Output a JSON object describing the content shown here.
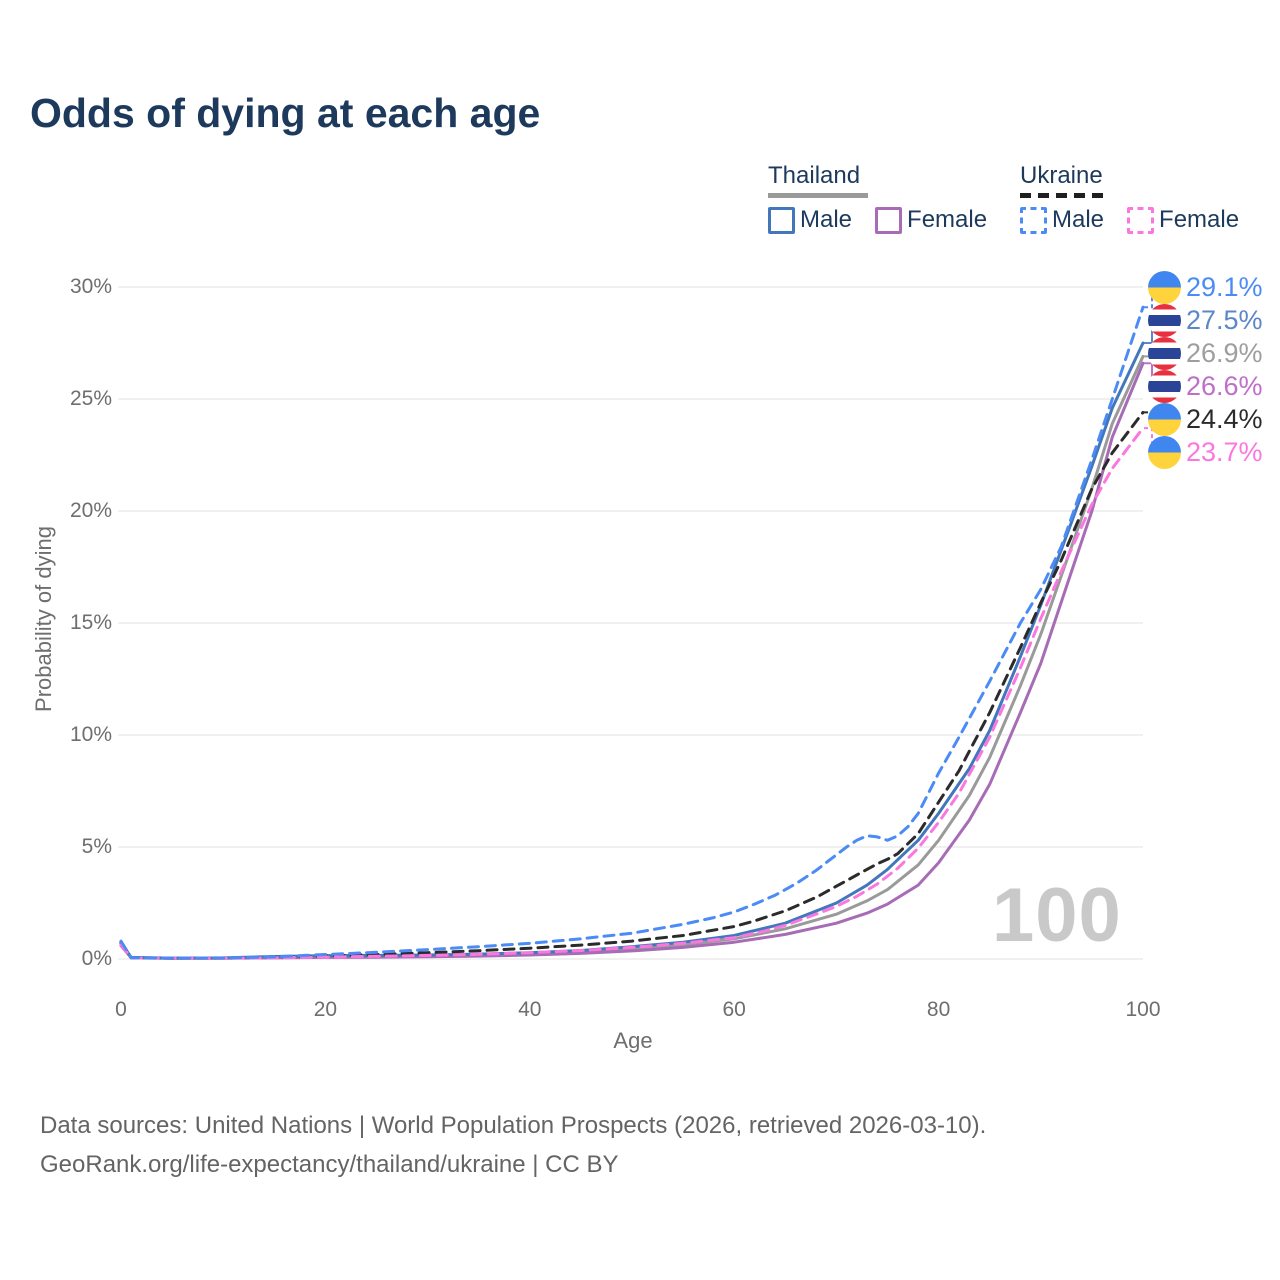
{
  "title": "Odds of dying at each age",
  "watermark": "100",
  "legend": {
    "groups": [
      {
        "country": "Thailand",
        "line_style": "solid",
        "underline_color": "#9a9a9a",
        "items": [
          {
            "label": "Male",
            "color": "#4377bc"
          },
          {
            "label": "Female",
            "color": "#a76cb5"
          }
        ]
      },
      {
        "country": "Ukraine",
        "line_style": "dashed",
        "underline_color": "#1f1f1f",
        "items": [
          {
            "label": "Male",
            "color": "#4b8bf5"
          },
          {
            "label": "Female",
            "color": "#fb77e0"
          }
        ]
      }
    ]
  },
  "footer": {
    "line1": "Data sources: United Nations | World Population Prospects (2026, retrieved 2026-03-10).",
    "line2": "GeoRank.org/life-expectancy/thailand/ukraine | CC BY"
  },
  "chart_data": {
    "type": "line",
    "title": "Odds of dying at each age",
    "xlabel": "Age",
    "ylabel": "Probability of dying",
    "xlim": [
      0,
      100
    ],
    "ylim": [
      0,
      30
    ],
    "x_ticks": [
      0,
      20,
      40,
      60,
      80,
      100
    ],
    "y_ticks": [
      "0%",
      "5%",
      "10%",
      "15%",
      "20%",
      "25%",
      "30%"
    ],
    "grid": "horizontal",
    "legend_position": "top-right",
    "series": [
      {
        "id": "thailand-total",
        "name": "Thailand (both sexes)",
        "country": "Thailand",
        "sex": "total",
        "color": "#9a9a9a",
        "dash": false,
        "end_value_pct": 26.9,
        "points": [
          [
            0,
            0.68
          ],
          [
            1,
            0.06
          ],
          [
            5,
            0.035
          ],
          [
            10,
            0.04
          ],
          [
            15,
            0.08
          ],
          [
            20,
            0.11
          ],
          [
            25,
            0.12
          ],
          [
            30,
            0.14
          ],
          [
            35,
            0.17
          ],
          [
            40,
            0.23
          ],
          [
            45,
            0.31
          ],
          [
            50,
            0.45
          ],
          [
            55,
            0.63
          ],
          [
            60,
            0.9
          ],
          [
            65,
            1.35
          ],
          [
            70,
            2.0
          ],
          [
            73,
            2.6
          ],
          [
            75,
            3.1
          ],
          [
            78,
            4.2
          ],
          [
            80,
            5.3
          ],
          [
            83,
            7.3
          ],
          [
            85,
            9.0
          ],
          [
            88,
            12.2
          ],
          [
            90,
            14.5
          ],
          [
            93,
            18.4
          ],
          [
            95,
            21.0
          ],
          [
            97,
            23.9
          ],
          [
            100,
            26.9
          ]
        ]
      },
      {
        "id": "thailand-female",
        "name": "Thailand Female",
        "country": "Thailand",
        "sex": "female",
        "color": "#a76cb5",
        "dash": false,
        "end_value_pct": 26.6,
        "points": [
          [
            0,
            0.6
          ],
          [
            1,
            0.05
          ],
          [
            5,
            0.03
          ],
          [
            10,
            0.03
          ],
          [
            15,
            0.05
          ],
          [
            20,
            0.07
          ],
          [
            25,
            0.08
          ],
          [
            30,
            0.1
          ],
          [
            35,
            0.13
          ],
          [
            40,
            0.18
          ],
          [
            45,
            0.25
          ],
          [
            50,
            0.36
          ],
          [
            55,
            0.52
          ],
          [
            60,
            0.75
          ],
          [
            65,
            1.1
          ],
          [
            70,
            1.6
          ],
          [
            73,
            2.05
          ],
          [
            75,
            2.45
          ],
          [
            78,
            3.3
          ],
          [
            80,
            4.3
          ],
          [
            83,
            6.2
          ],
          [
            85,
            7.8
          ],
          [
            88,
            11.0
          ],
          [
            90,
            13.2
          ],
          [
            93,
            17.3
          ],
          [
            95,
            20.0
          ],
          [
            97,
            23.3
          ],
          [
            100,
            26.6
          ]
        ]
      },
      {
        "id": "thailand-male",
        "name": "Thailand Male",
        "country": "Thailand",
        "sex": "male",
        "color": "#4377bc",
        "dash": false,
        "end_value_pct": 27.5,
        "points": [
          [
            0,
            0.75
          ],
          [
            1,
            0.07
          ],
          [
            5,
            0.04
          ],
          [
            10,
            0.05
          ],
          [
            15,
            0.11
          ],
          [
            20,
            0.15
          ],
          [
            25,
            0.16
          ],
          [
            30,
            0.18
          ],
          [
            35,
            0.22
          ],
          [
            40,
            0.28
          ],
          [
            45,
            0.38
          ],
          [
            50,
            0.55
          ],
          [
            55,
            0.75
          ],
          [
            60,
            1.05
          ],
          [
            65,
            1.6
          ],
          [
            70,
            2.5
          ],
          [
            73,
            3.3
          ],
          [
            75,
            4.0
          ],
          [
            78,
            5.3
          ],
          [
            80,
            6.5
          ],
          [
            83,
            8.5
          ],
          [
            85,
            10.2
          ],
          [
            88,
            13.5
          ],
          [
            90,
            15.8
          ],
          [
            93,
            19.5
          ],
          [
            95,
            22.0
          ],
          [
            97,
            24.6
          ],
          [
            100,
            27.5
          ]
        ]
      },
      {
        "id": "ukraine-total",
        "name": "Ukraine (both sexes)",
        "country": "Ukraine",
        "sex": "total",
        "color": "#2b2b2b",
        "dash": true,
        "end_value_pct": 24.4,
        "points": [
          [
            0,
            0.72
          ],
          [
            1,
            0.055
          ],
          [
            5,
            0.035
          ],
          [
            10,
            0.04
          ],
          [
            15,
            0.08
          ],
          [
            20,
            0.14
          ],
          [
            25,
            0.2
          ],
          [
            30,
            0.28
          ],
          [
            35,
            0.37
          ],
          [
            40,
            0.48
          ],
          [
            45,
            0.62
          ],
          [
            50,
            0.8
          ],
          [
            55,
            1.05
          ],
          [
            60,
            1.45
          ],
          [
            62,
            1.7
          ],
          [
            65,
            2.15
          ],
          [
            68,
            2.75
          ],
          [
            70,
            3.25
          ],
          [
            72,
            3.75
          ],
          [
            74,
            4.25
          ],
          [
            75,
            4.45
          ],
          [
            76,
            4.7
          ],
          [
            78,
            5.6
          ],
          [
            80,
            7.0
          ],
          [
            82,
            8.4
          ],
          [
            85,
            11.0
          ],
          [
            88,
            13.9
          ],
          [
            90,
            15.9
          ],
          [
            92,
            17.8
          ],
          [
            95,
            21.0
          ],
          [
            97,
            22.6
          ],
          [
            100,
            24.4
          ]
        ]
      },
      {
        "id": "ukraine-female",
        "name": "Ukraine Female",
        "country": "Ukraine",
        "sex": "female",
        "color": "#fb77e0",
        "dash": true,
        "end_value_pct": 23.7,
        "points": [
          [
            0,
            0.65
          ],
          [
            1,
            0.05
          ],
          [
            5,
            0.03
          ],
          [
            10,
            0.035
          ],
          [
            15,
            0.06
          ],
          [
            20,
            0.09
          ],
          [
            25,
            0.12
          ],
          [
            30,
            0.16
          ],
          [
            35,
            0.21
          ],
          [
            40,
            0.28
          ],
          [
            45,
            0.38
          ],
          [
            50,
            0.52
          ],
          [
            55,
            0.7
          ],
          [
            60,
            0.95
          ],
          [
            63,
            1.25
          ],
          [
            65,
            1.5
          ],
          [
            68,
            2.0
          ],
          [
            70,
            2.35
          ],
          [
            72,
            2.8
          ],
          [
            74,
            3.35
          ],
          [
            76,
            4.05
          ],
          [
            78,
            4.95
          ],
          [
            80,
            6.1
          ],
          [
            82,
            7.4
          ],
          [
            85,
            9.9
          ],
          [
            88,
            13.0
          ],
          [
            90,
            15.2
          ],
          [
            92,
            17.3
          ],
          [
            95,
            20.3
          ],
          [
            97,
            21.9
          ],
          [
            100,
            23.7
          ]
        ]
      },
      {
        "id": "ukraine-male",
        "name": "Ukraine Male",
        "country": "Ukraine",
        "sex": "male",
        "color": "#4b8bf5",
        "dash": true,
        "end_value_pct": 29.1,
        "points": [
          [
            0,
            0.8
          ],
          [
            1,
            0.06
          ],
          [
            5,
            0.04
          ],
          [
            10,
            0.05
          ],
          [
            15,
            0.1
          ],
          [
            18,
            0.16
          ],
          [
            20,
            0.2
          ],
          [
            25,
            0.3
          ],
          [
            30,
            0.42
          ],
          [
            35,
            0.55
          ],
          [
            40,
            0.7
          ],
          [
            45,
            0.9
          ],
          [
            50,
            1.15
          ],
          [
            55,
            1.55
          ],
          [
            58,
            1.85
          ],
          [
            60,
            2.1
          ],
          [
            62,
            2.45
          ],
          [
            64,
            2.85
          ],
          [
            66,
            3.35
          ],
          [
            68,
            3.95
          ],
          [
            70,
            4.65
          ],
          [
            71,
            5.0
          ],
          [
            72,
            5.3
          ],
          [
            73,
            5.5
          ],
          [
            74,
            5.45
          ],
          [
            75,
            5.3
          ],
          [
            76,
            5.5
          ],
          [
            77,
            5.9
          ],
          [
            78,
            6.5
          ],
          [
            80,
            8.3
          ],
          [
            82,
            9.9
          ],
          [
            85,
            12.4
          ],
          [
            88,
            15.0
          ],
          [
            90,
            16.5
          ],
          [
            92,
            18.4
          ],
          [
            95,
            22.3
          ],
          [
            97,
            25.0
          ],
          [
            100,
            29.1
          ]
        ]
      }
    ],
    "end_labels": [
      {
        "series": "ukraine-male",
        "value": "29.1%",
        "flag": "ukraine",
        "color": "#4b8bf5"
      },
      {
        "series": "thailand-male",
        "value": "27.5%",
        "flag": "thailand",
        "color": "#5b87c9"
      },
      {
        "series": "thailand-total",
        "value": "26.9%",
        "flag": "thailand",
        "color": "#9e9e9e"
      },
      {
        "series": "thailand-female",
        "value": "26.6%",
        "flag": "thailand",
        "color": "#bf6fc9"
      },
      {
        "series": "ukraine-total",
        "value": "24.4%",
        "flag": "ukraine",
        "color": "#2b2b2b"
      },
      {
        "series": "ukraine-female",
        "value": "23.7%",
        "flag": "ukraine",
        "color": "#fb77e0"
      }
    ]
  }
}
